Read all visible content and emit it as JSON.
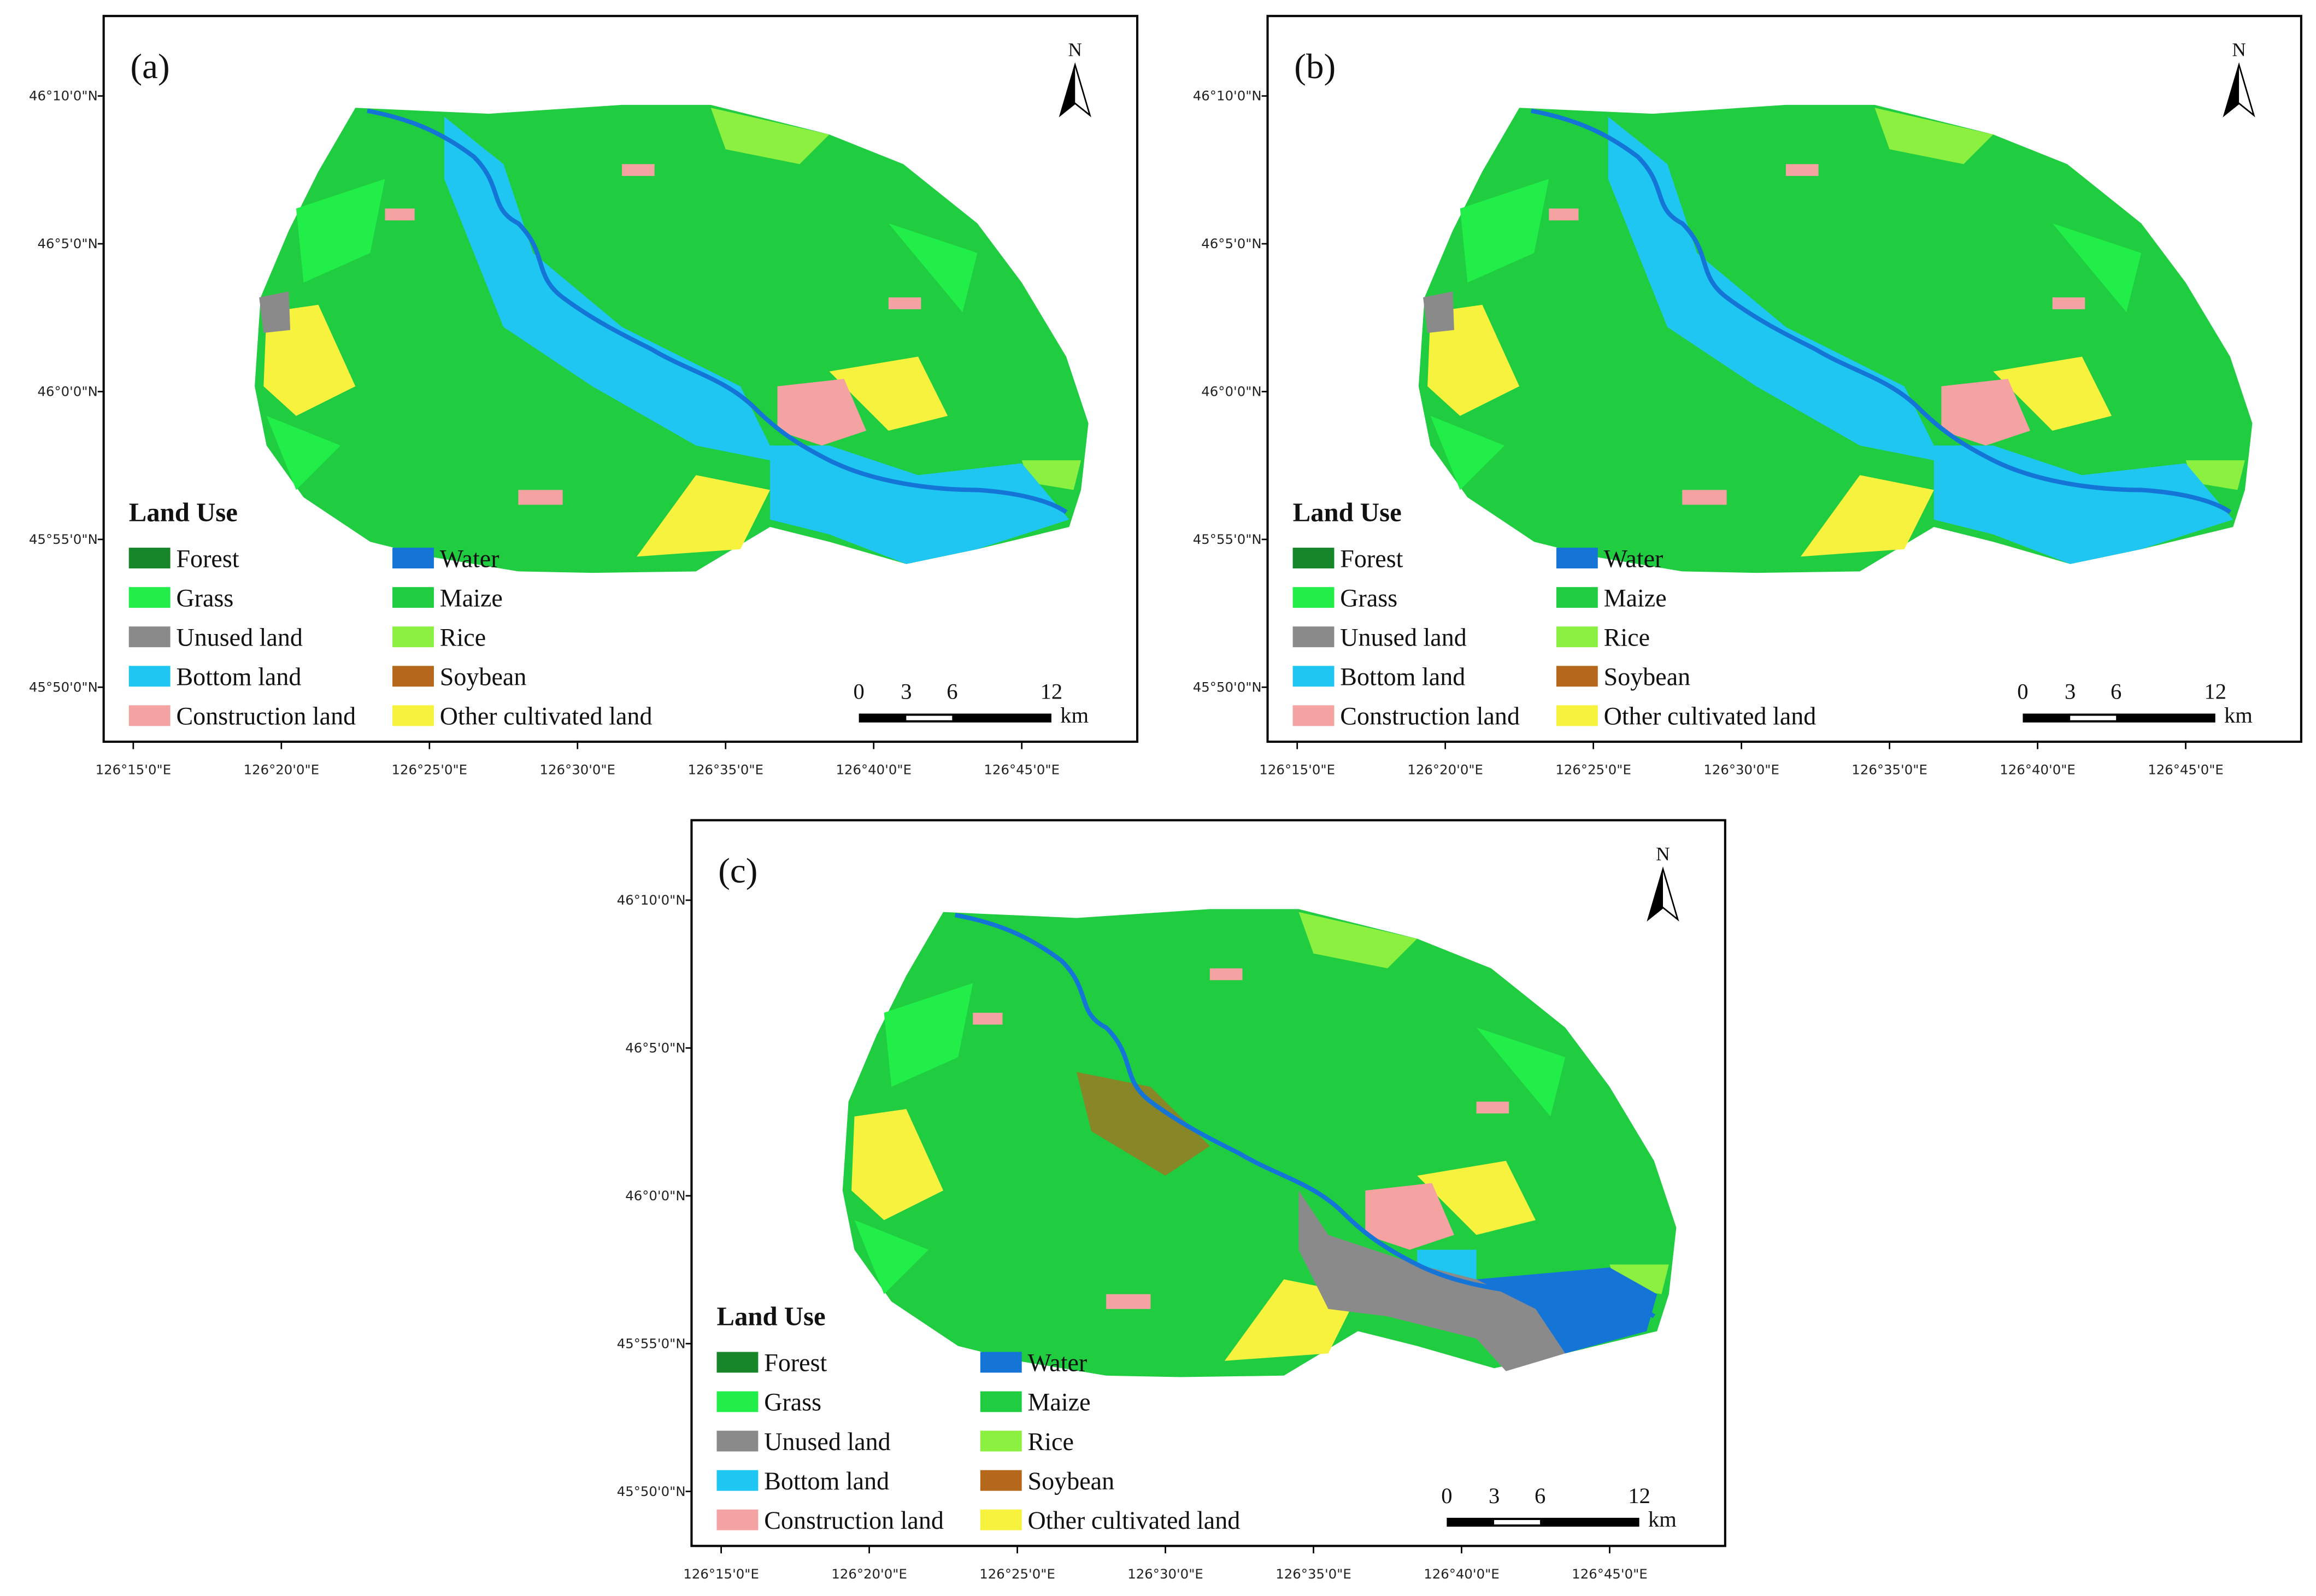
{
  "panels": [
    {
      "label": "(a)",
      "north": "N",
      "lat_labels": [
        "46°10'0\"N",
        "46°5'0\"N",
        "46°0'0\"N",
        "45°55'0\"N",
        "45°50'0\"N"
      ],
      "lon_labels": [
        "126°15'0\"E",
        "126°20'0\"E",
        "126°25'0\"E",
        "126°30'0\"E",
        "126°35'0\"E",
        "126°40'0\"E",
        "126°45'0\"E"
      ],
      "legend": {
        "title": "Land Use",
        "items": [
          {
            "label": "Forest",
            "color": "#17862a"
          },
          {
            "label": "Water",
            "color": "#1475d6"
          },
          {
            "label": "Grass",
            "color": "#22ee4a"
          },
          {
            "label": "Maize",
            "color": "#20cc40"
          },
          {
            "label": "Unused land",
            "color": "#8a8a8a"
          },
          {
            "label": "Rice",
            "color": "#8cf040"
          },
          {
            "label": "Bottom land",
            "color": "#20c6f2"
          },
          {
            "label": "Soybean",
            "color": "#b5681c"
          },
          {
            "label": "Construction land",
            "color": "#f5a2a2"
          },
          {
            "label": "Other cultivated land",
            "color": "#f7f23e"
          }
        ]
      },
      "scale": {
        "ticks": [
          "0",
          "3",
          "6",
          "12"
        ],
        "unit": "km"
      }
    },
    {
      "label": "(b)",
      "north": "N",
      "lat_labels": [
        "46°10'0\"N",
        "46°5'0\"N",
        "46°0'0\"N",
        "45°55'0\"N",
        "45°50'0\"N"
      ],
      "lon_labels": [
        "126°15'0\"E",
        "126°20'0\"E",
        "126°25'0\"E",
        "126°30'0\"E",
        "126°35'0\"E",
        "126°40'0\"E",
        "126°45'0\"E"
      ],
      "legend": {
        "title": "Land Use",
        "items": [
          {
            "label": "Forest",
            "color": "#17862a"
          },
          {
            "label": "Water",
            "color": "#1475d6"
          },
          {
            "label": "Grass",
            "color": "#22ee4a"
          },
          {
            "label": "Maize",
            "color": "#20cc40"
          },
          {
            "label": "Unused land",
            "color": "#8a8a8a"
          },
          {
            "label": "Rice",
            "color": "#8cf040"
          },
          {
            "label": "Bottom land",
            "color": "#20c6f2"
          },
          {
            "label": "Soybean",
            "color": "#b5681c"
          },
          {
            "label": "Construction land",
            "color": "#f5a2a2"
          },
          {
            "label": "Other cultivated land",
            "color": "#f7f23e"
          }
        ]
      },
      "scale": {
        "ticks": [
          "0",
          "3",
          "6",
          "12"
        ],
        "unit": "km"
      }
    },
    {
      "label": "(c)",
      "north": "N",
      "lat_labels": [
        "46°10'0\"N",
        "46°5'0\"N",
        "46°0'0\"N",
        "45°55'0\"N",
        "45°50'0\"N"
      ],
      "lon_labels": [
        "126°15'0\"E",
        "126°20'0\"E",
        "126°25'0\"E",
        "126°30'0\"E",
        "126°35'0\"E",
        "126°40'0\"E",
        "126°45'0\"E"
      ],
      "legend": {
        "title": "Land Use",
        "items": [
          {
            "label": "Forest",
            "color": "#17862a"
          },
          {
            "label": "Water",
            "color": "#1475d6"
          },
          {
            "label": "Grass",
            "color": "#22ee4a"
          },
          {
            "label": "Maize",
            "color": "#20cc40"
          },
          {
            "label": "Unused land",
            "color": "#8a8a8a"
          },
          {
            "label": "Rice",
            "color": "#8cf040"
          },
          {
            "label": "Bottom land",
            "color": "#20c6f2"
          },
          {
            "label": "Soybean",
            "color": "#b5681c"
          },
          {
            "label": "Construction land",
            "color": "#f5a2a2"
          },
          {
            "label": "Other cultivated land",
            "color": "#f7f23e"
          }
        ]
      },
      "scale": {
        "ticks": [
          "0",
          "3",
          "6",
          "12"
        ],
        "unit": "km"
      }
    }
  ]
}
